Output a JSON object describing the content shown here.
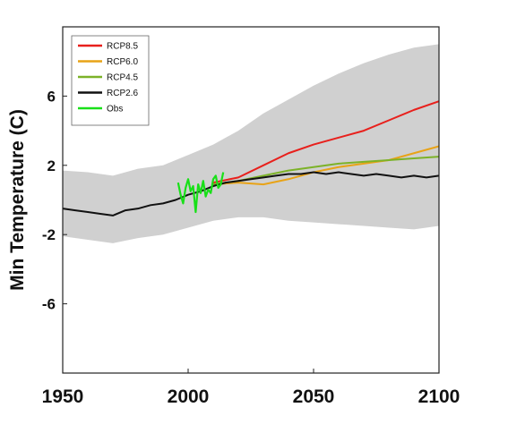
{
  "chart_data": {
    "type": "line",
    "title": "",
    "xlabel": "",
    "ylabel": "Min Temperature (C)",
    "xlim": [
      1950,
      2100
    ],
    "ylim": [
      -10,
      10
    ],
    "x_ticks": [
      1950,
      2000,
      2050,
      2100
    ],
    "x_tick_labels": [
      "1950",
      "2000",
      "2050",
      "2100"
    ],
    "y_ticks": [
      6,
      2,
      -2,
      -6
    ],
    "y_tick_labels": [
      "6",
      "2",
      "-2",
      "-6"
    ],
    "grid": false,
    "legend_position": "top-left",
    "ensemble_band": {
      "x": [
        1950,
        1960,
        1970,
        1980,
        1990,
        2000,
        2010,
        2020,
        2030,
        2040,
        2050,
        2060,
        2070,
        2080,
        2090,
        2100
      ],
      "lower": [
        -2.1,
        -2.3,
        -2.5,
        -2.2,
        -2.0,
        -1.6,
        -1.2,
        -1.0,
        -1.0,
        -1.2,
        -1.3,
        -1.4,
        -1.5,
        -1.6,
        -1.7,
        -1.5
      ],
      "upper": [
        1.7,
        1.6,
        1.4,
        1.8,
        2.0,
        2.6,
        3.2,
        4.0,
        5.0,
        5.8,
        6.6,
        7.3,
        7.9,
        8.4,
        8.8,
        9.0
      ]
    },
    "series": [
      {
        "name": "RCP8.5",
        "color": "#e8201c",
        "x": [
          2010,
          2020,
          2030,
          2040,
          2050,
          2060,
          2070,
          2080,
          2090,
          2100
        ],
        "values": [
          1.0,
          1.3,
          2.0,
          2.7,
          3.2,
          3.6,
          4.0,
          4.6,
          5.2,
          5.7
        ]
      },
      {
        "name": "RCP6.0",
        "color": "#e8a317",
        "x": [
          2010,
          2020,
          2030,
          2040,
          2050,
          2060,
          2070,
          2080,
          2090,
          2100
        ],
        "values": [
          0.9,
          1.0,
          0.9,
          1.2,
          1.6,
          1.9,
          2.1,
          2.3,
          2.7,
          3.1
        ]
      },
      {
        "name": "RCP4.5",
        "color": "#7cb228",
        "x": [
          2010,
          2020,
          2030,
          2040,
          2050,
          2060,
          2070,
          2080,
          2090,
          2100
        ],
        "values": [
          0.9,
          1.1,
          1.4,
          1.7,
          1.9,
          2.1,
          2.2,
          2.3,
          2.4,
          2.5
        ]
      },
      {
        "name": "RCP2.6",
        "color": "#111111",
        "x": [
          1950,
          1955,
          1960,
          1965,
          1970,
          1975,
          1980,
          1985,
          1990,
          1995,
          2000,
          2005,
          2010,
          2015,
          2020,
          2025,
          2030,
          2035,
          2040,
          2045,
          2050,
          2055,
          2060,
          2065,
          2070,
          2075,
          2080,
          2085,
          2090,
          2095,
          2100
        ],
        "values": [
          -0.5,
          -0.6,
          -0.7,
          -0.8,
          -0.9,
          -0.6,
          -0.5,
          -0.3,
          -0.2,
          0.0,
          0.3,
          0.5,
          0.8,
          1.0,
          1.1,
          1.2,
          1.3,
          1.4,
          1.5,
          1.5,
          1.6,
          1.5,
          1.6,
          1.5,
          1.4,
          1.5,
          1.4,
          1.3,
          1.4,
          1.3,
          1.4
        ]
      },
      {
        "name": "Obs",
        "color": "#18e018",
        "x": [
          1996,
          1997,
          1998,
          1999,
          2000,
          2001,
          2002,
          2003,
          2004,
          2005,
          2006,
          2007,
          2008,
          2009,
          2010,
          2011,
          2012,
          2013,
          2014
        ],
        "values": [
          1.0,
          0.3,
          -0.2,
          0.7,
          1.2,
          0.5,
          0.8,
          -0.7,
          0.9,
          0.4,
          1.1,
          0.2,
          0.6,
          0.4,
          1.2,
          1.4,
          0.7,
          0.9,
          1.6
        ]
      }
    ]
  }
}
